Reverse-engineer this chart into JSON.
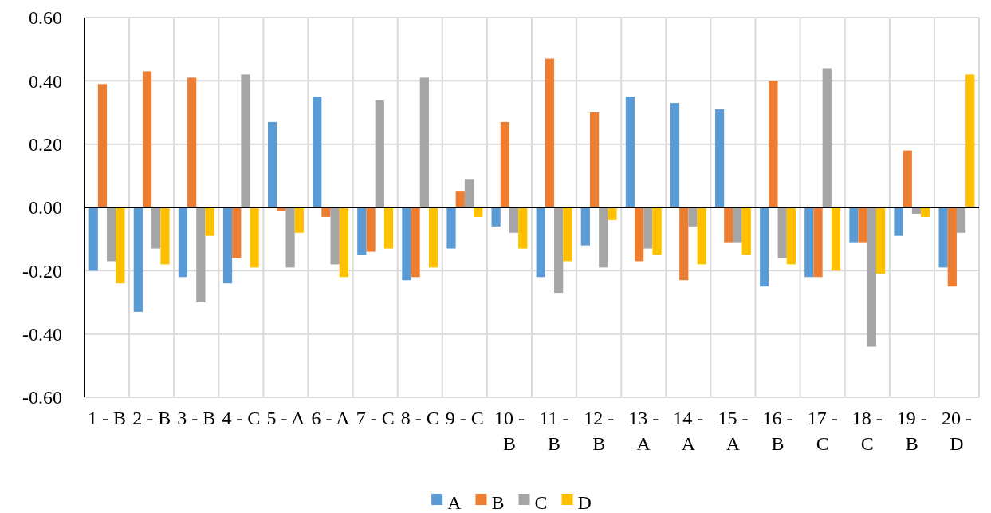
{
  "chart_data": {
    "type": "bar",
    "categories": [
      "1 - B",
      "2 - B",
      "3 - B",
      "4 - C",
      "5 - A",
      "6 - A",
      "7 - C",
      "8 - C",
      "9 - C",
      "10 - B",
      "11 - B",
      "12 - B",
      "13 - A",
      "14 - A",
      "15 - A",
      "16 - B",
      "17 - C",
      "18 - C",
      "19 - B",
      "20 - D"
    ],
    "series": [
      {
        "name": "A",
        "color": "#5b9bd5",
        "values": [
          -0.2,
          -0.33,
          -0.22,
          -0.24,
          0.27,
          0.35,
          -0.15,
          -0.23,
          -0.13,
          -0.06,
          -0.22,
          -0.12,
          0.35,
          0.33,
          0.31,
          -0.25,
          -0.22,
          -0.11,
          -0.09,
          -0.19
        ]
      },
      {
        "name": "B",
        "color": "#ed7d31",
        "values": [
          0.39,
          0.43,
          0.41,
          -0.16,
          -0.01,
          -0.03,
          -0.14,
          -0.22,
          0.05,
          0.27,
          0.47,
          0.3,
          -0.17,
          -0.23,
          -0.11,
          0.4,
          -0.22,
          -0.11,
          0.18,
          -0.25
        ]
      },
      {
        "name": "C",
        "color": "#a5a5a5",
        "values": [
          -0.17,
          -0.13,
          -0.3,
          0.42,
          -0.19,
          -0.18,
          0.34,
          0.41,
          0.09,
          -0.08,
          -0.27,
          -0.19,
          -0.13,
          -0.06,
          -0.11,
          -0.16,
          0.44,
          -0.44,
          -0.02,
          -0.08
        ]
      },
      {
        "name": "D",
        "color": "#ffc000",
        "values": [
          -0.24,
          -0.18,
          -0.09,
          -0.19,
          -0.08,
          -0.22,
          -0.13,
          -0.19,
          -0.03,
          -0.13,
          -0.17,
          -0.04,
          -0.15,
          -0.18,
          -0.15,
          -0.18,
          -0.2,
          -0.21,
          -0.03,
          0.42
        ]
      }
    ],
    "ylim": [
      -0.6,
      0.6
    ],
    "yticks": [
      {
        "value": -0.6,
        "label": "-0.60"
      },
      {
        "value": -0.4,
        "label": "-0.40"
      },
      {
        "value": -0.2,
        "label": "-0.20"
      },
      {
        "value": 0,
        "label": "0.00"
      },
      {
        "value": 0.2,
        "label": "0.20"
      },
      {
        "value": 0.4,
        "label": "0.40"
      },
      {
        "value": 0.6,
        "label": "0.60"
      }
    ],
    "grid": true,
    "legend": "bottom"
  }
}
